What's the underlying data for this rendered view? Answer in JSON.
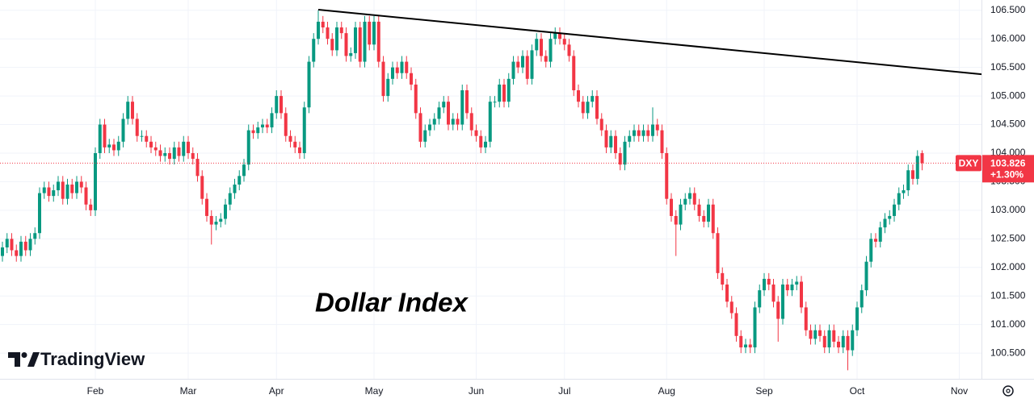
{
  "chart_data": {
    "type": "candlestick",
    "title": "Dollar Index",
    "watermark": "TradingView",
    "categories": [
      null,
      null,
      null,
      null,
      null,
      null,
      null,
      null,
      null,
      null,
      null,
      null,
      null,
      null,
      null,
      null,
      null,
      null,
      null,
      null,
      "Feb",
      null,
      null,
      null,
      null,
      null,
      null,
      null,
      null,
      null,
      null,
      null,
      null,
      null,
      null,
      null,
      null,
      null,
      null,
      null,
      "Mar",
      null,
      null,
      null,
      null,
      null,
      null,
      null,
      null,
      null,
      null,
      null,
      null,
      null,
      null,
      null,
      null,
      null,
      null,
      "Apr",
      null,
      null,
      null,
      null,
      null,
      null,
      null,
      null,
      null,
      null,
      null,
      null,
      null,
      null,
      null,
      null,
      null,
      null,
      null,
      null,
      "May",
      null,
      null,
      null,
      null,
      null,
      null,
      null,
      null,
      null,
      null,
      null,
      null,
      null,
      null,
      null,
      null,
      null,
      null,
      null,
      null,
      null,
      "Jun",
      null,
      null,
      null,
      null,
      null,
      null,
      null,
      null,
      null,
      null,
      null,
      null,
      null,
      null,
      null,
      null,
      null,
      null,
      "Jul",
      null,
      null,
      null,
      null,
      null,
      null,
      null,
      null,
      null,
      null,
      null,
      null,
      null,
      null,
      null,
      null,
      null,
      null,
      null,
      null,
      null,
      "Aug",
      null,
      null,
      null,
      null,
      null,
      null,
      null,
      null,
      null,
      null,
      null,
      null,
      null,
      null,
      null,
      null,
      null,
      null,
      null,
      null,
      "Sep",
      null,
      null,
      null,
      null,
      null,
      null,
      null,
      null,
      null,
      null,
      null,
      null,
      null,
      null,
      null,
      null,
      null,
      null,
      null,
      "Oct",
      null,
      null,
      null,
      null,
      null,
      null,
      null,
      null,
      null,
      null,
      null,
      null,
      null,
      null,
      null,
      null,
      null,
      null,
      null,
      null,
      null,
      "Nov"
    ],
    "series": {
      "open": [
        102.2,
        102.35,
        102.5,
        102.3,
        102.2,
        102.45,
        102.3,
        102.5,
        102.6,
        103.3,
        103.4,
        103.25,
        103.35,
        103.5,
        103.2,
        103.45,
        103.3,
        103.5,
        103.4,
        103.1,
        103.0,
        104.0,
        104.5,
        104.1,
        104.15,
        104.05,
        104.2,
        104.6,
        104.9,
        104.6,
        104.3,
        104.3,
        104.2,
        104.1,
        104.05,
        103.95,
        104.0,
        103.9,
        104.1,
        103.95,
        104.2,
        104.0,
        103.9,
        103.6,
        103.2,
        102.9,
        102.75,
        102.8,
        102.85,
        103.1,
        103.3,
        103.45,
        103.6,
        103.8,
        104.4,
        104.35,
        104.45,
        104.5,
        104.45,
        104.7,
        105.0,
        104.7,
        104.3,
        104.2,
        104.1,
        104.0,
        104.8,
        105.6,
        106.0,
        106.3,
        106.2,
        106.0,
        105.8,
        106.2,
        106.1,
        105.7,
        105.75,
        106.2,
        105.6,
        106.3,
        105.9,
        106.3,
        105.6,
        105.0,
        105.3,
        105.5,
        105.4,
        105.6,
        105.4,
        105.2,
        104.7,
        104.2,
        104.4,
        104.5,
        104.6,
        104.8,
        104.9,
        104.5,
        104.6,
        104.5,
        105.1,
        104.7,
        104.4,
        104.3,
        104.1,
        104.2,
        104.9,
        104.9,
        105.2,
        104.9,
        105.3,
        105.6,
        105.5,
        105.7,
        105.3,
        105.8,
        106.0,
        105.7,
        105.6,
        106.0,
        106.1,
        106.0,
        105.9,
        105.7,
        105.1,
        104.9,
        104.7,
        104.9,
        105.0,
        104.6,
        104.4,
        104.1,
        104.3,
        104.0,
        103.8,
        104.2,
        104.3,
        104.4,
        104.3,
        104.4,
        104.3,
        104.5,
        104.4,
        104.0,
        103.2,
        102.9,
        102.75,
        103.1,
        103.2,
        103.3,
        103.1,
        102.9,
        102.8,
        103.1,
        102.6,
        101.9,
        101.7,
        101.4,
        101.2,
        100.8,
        100.6,
        100.65,
        100.6,
        101.3,
        101.6,
        101.8,
        101.7,
        101.4,
        101.1,
        101.7,
        101.6,
        101.7,
        101.75,
        101.3,
        100.9,
        100.75,
        100.9,
        100.8,
        100.6,
        100.9,
        100.7,
        100.6,
        100.8,
        100.55,
        100.9,
        101.3,
        101.6,
        102.1,
        102.5,
        102.45,
        102.7,
        102.85,
        102.9,
        103.1,
        103.3,
        103.35,
        103.7,
        103.55,
        104.0,
        null,
        null,
        null,
        null,
        null,
        null,
        null,
        null
      ],
      "high": [
        102.45,
        102.6,
        102.6,
        102.4,
        102.55,
        102.55,
        102.6,
        102.7,
        103.4,
        103.5,
        103.5,
        103.45,
        103.6,
        103.6,
        103.55,
        103.55,
        103.6,
        103.6,
        103.5,
        103.2,
        104.1,
        104.6,
        104.6,
        104.25,
        104.25,
        104.3,
        104.7,
        105.0,
        105.0,
        104.7,
        104.4,
        104.4,
        104.3,
        104.2,
        104.15,
        104.1,
        104.1,
        104.2,
        104.2,
        104.3,
        104.3,
        104.1,
        104.0,
        103.7,
        103.3,
        103.0,
        102.9,
        102.95,
        103.2,
        103.4,
        103.55,
        103.7,
        103.9,
        104.5,
        104.5,
        104.55,
        104.6,
        104.6,
        104.8,
        105.1,
        105.1,
        104.8,
        104.4,
        104.3,
        104.2,
        104.9,
        105.7,
        106.1,
        106.5,
        106.4,
        106.3,
        106.1,
        106.3,
        106.3,
        106.2,
        105.85,
        106.3,
        106.3,
        106.4,
        106.4,
        106.4,
        106.4,
        105.7,
        105.4,
        105.6,
        105.6,
        105.7,
        105.7,
        105.5,
        105.3,
        104.8,
        104.5,
        104.6,
        104.7,
        104.9,
        105.0,
        105.0,
        104.7,
        104.7,
        105.2,
        105.2,
        104.8,
        104.5,
        104.4,
        104.3,
        105.0,
        105.0,
        105.3,
        105.3,
        105.4,
        105.7,
        105.7,
        105.8,
        105.8,
        105.9,
        106.1,
        106.1,
        105.8,
        106.1,
        106.2,
        106.2,
        106.1,
        106.0,
        105.8,
        105.2,
        105.0,
        105.0,
        105.1,
        105.1,
        104.7,
        104.5,
        104.4,
        104.4,
        104.1,
        104.3,
        104.4,
        104.5,
        104.5,
        104.5,
        104.5,
        104.8,
        104.6,
        104.5,
        104.1,
        103.3,
        103.0,
        103.2,
        103.3,
        103.4,
        103.4,
        103.2,
        103.0,
        103.2,
        103.2,
        102.7,
        102.0,
        101.8,
        101.5,
        101.3,
        100.9,
        100.75,
        100.75,
        101.4,
        101.7,
        101.9,
        101.9,
        101.8,
        101.5,
        101.8,
        101.8,
        101.8,
        101.85,
        101.85,
        101.4,
        101.0,
        101.0,
        101.0,
        100.9,
        101.0,
        101.0,
        100.8,
        100.9,
        100.9,
        101.0,
        101.4,
        101.7,
        102.2,
        102.6,
        102.6,
        102.8,
        102.95,
        103.0,
        103.2,
        103.4,
        103.45,
        103.8,
        103.8,
        104.05,
        104.05,
        null,
        null,
        null,
        null,
        null,
        null,
        null,
        null
      ],
      "low": [
        102.1,
        102.25,
        102.2,
        102.1,
        102.1,
        102.2,
        102.2,
        102.4,
        102.5,
        103.2,
        103.15,
        103.15,
        103.25,
        103.1,
        103.1,
        103.2,
        103.2,
        103.3,
        103.0,
        102.9,
        102.9,
        103.9,
        104.0,
        104.0,
        103.95,
        103.95,
        104.1,
        104.5,
        104.5,
        104.2,
        104.2,
        104.1,
        104.0,
        103.95,
        103.85,
        103.85,
        103.8,
        103.8,
        103.85,
        103.85,
        103.9,
        103.8,
        103.5,
        103.1,
        102.8,
        102.4,
        102.65,
        102.7,
        102.75,
        103.0,
        103.2,
        103.35,
        103.5,
        103.7,
        104.25,
        104.25,
        104.35,
        104.35,
        104.35,
        104.6,
        104.6,
        104.2,
        104.1,
        104.0,
        103.9,
        103.9,
        104.7,
        105.5,
        105.9,
        106.1,
        105.9,
        105.7,
        105.7,
        106.0,
        105.6,
        105.6,
        105.65,
        105.5,
        105.5,
        105.8,
        105.8,
        105.5,
        104.9,
        104.9,
        105.2,
        105.3,
        105.3,
        105.3,
        105.1,
        104.6,
        104.1,
        104.1,
        104.3,
        104.4,
        104.5,
        104.7,
        104.4,
        104.4,
        104.4,
        104.4,
        104.6,
        104.3,
        104.2,
        104.0,
        104.0,
        104.1,
        104.8,
        104.8,
        104.8,
        104.8,
        105.2,
        105.4,
        105.4,
        105.2,
        105.2,
        105.7,
        105.6,
        105.5,
        105.5,
        105.9,
        105.9,
        105.8,
        105.6,
        105.0,
        104.8,
        104.6,
        104.6,
        104.8,
        104.5,
        104.3,
        104.0,
        104.0,
        103.9,
        103.7,
        103.7,
        104.1,
        104.2,
        104.2,
        104.2,
        104.2,
        104.2,
        104.3,
        103.9,
        103.1,
        102.8,
        102.2,
        102.65,
        103.0,
        103.1,
        103.0,
        102.8,
        102.7,
        102.7,
        102.5,
        101.8,
        101.6,
        101.3,
        101.1,
        100.7,
        100.5,
        100.5,
        100.5,
        100.5,
        101.2,
        101.5,
        101.6,
        101.3,
        100.7,
        101.0,
        101.5,
        101.5,
        101.6,
        101.2,
        100.8,
        100.65,
        100.65,
        100.7,
        100.5,
        100.5,
        100.6,
        100.5,
        100.5,
        100.2,
        100.45,
        100.8,
        101.2,
        101.5,
        102.0,
        102.35,
        102.35,
        102.6,
        102.75,
        102.8,
        103.0,
        103.2,
        103.25,
        103.45,
        103.45,
        103.7,
        null,
        null,
        null,
        null,
        null,
        null,
        null,
        null
      ],
      "close": [
        102.35,
        102.5,
        102.3,
        102.2,
        102.45,
        102.3,
        102.5,
        102.6,
        103.3,
        103.4,
        103.25,
        103.35,
        103.5,
        103.2,
        103.45,
        103.3,
        103.5,
        103.4,
        103.1,
        103.0,
        104.0,
        104.5,
        104.1,
        104.15,
        104.05,
        104.2,
        104.6,
        104.9,
        104.6,
        104.3,
        104.3,
        104.2,
        104.1,
        104.05,
        103.95,
        104.0,
        103.9,
        104.1,
        103.95,
        104.2,
        104.0,
        103.9,
        103.6,
        103.2,
        102.9,
        102.75,
        102.8,
        102.85,
        103.1,
        103.3,
        103.45,
        103.6,
        103.8,
        104.4,
        104.35,
        104.45,
        104.5,
        104.45,
        104.7,
        105.0,
        104.7,
        104.3,
        104.2,
        104.1,
        104.0,
        104.8,
        105.6,
        106.0,
        106.3,
        106.2,
        106.0,
        105.8,
        106.2,
        106.1,
        105.7,
        105.75,
        106.2,
        105.6,
        106.3,
        105.9,
        106.3,
        105.6,
        105.0,
        105.3,
        105.5,
        105.4,
        105.6,
        105.4,
        105.2,
        104.7,
        104.2,
        104.4,
        104.5,
        104.6,
        104.8,
        104.9,
        104.5,
        104.6,
        104.5,
        105.1,
        104.7,
        104.4,
        104.3,
        104.1,
        104.2,
        104.9,
        104.9,
        105.2,
        104.9,
        105.3,
        105.6,
        105.5,
        105.7,
        105.3,
        105.8,
        106.0,
        105.7,
        105.6,
        106.0,
        106.1,
        106.0,
        105.9,
        105.7,
        105.1,
        104.9,
        104.7,
        104.9,
        105.0,
        104.6,
        104.4,
        104.1,
        104.3,
        104.0,
        103.8,
        104.2,
        104.3,
        104.4,
        104.3,
        104.4,
        104.3,
        104.5,
        104.4,
        104.0,
        103.2,
        102.9,
        102.75,
        103.1,
        103.2,
        103.3,
        103.1,
        102.9,
        102.8,
        103.1,
        102.6,
        101.9,
        101.7,
        101.4,
        101.2,
        100.8,
        100.6,
        100.65,
        100.6,
        101.3,
        101.6,
        101.8,
        101.7,
        101.4,
        101.1,
        101.7,
        101.6,
        101.7,
        101.75,
        101.3,
        100.9,
        100.75,
        100.9,
        100.8,
        100.6,
        100.9,
        100.7,
        100.6,
        100.8,
        100.55,
        100.9,
        101.3,
        101.6,
        102.1,
        102.5,
        102.45,
        102.7,
        102.85,
        102.9,
        103.1,
        103.3,
        103.35,
        103.7,
        103.55,
        103.95,
        103.826,
        null,
        null,
        null,
        null,
        null,
        null,
        null,
        null
      ]
    },
    "colors": {
      "up": "#089981",
      "down": "#f23645"
    },
    "ylim": [
      100.05,
      106.68
    ],
    "yticks": [
      {
        "value": 100.5,
        "label": "100.500"
      },
      {
        "value": 101,
        "label": "101.000"
      },
      {
        "value": 101.5,
        "label": "101.500"
      },
      {
        "value": 102,
        "label": "102.000"
      },
      {
        "value": 102.5,
        "label": "102.500"
      },
      {
        "value": 103,
        "label": "103.000"
      },
      {
        "value": 103.5,
        "label": "103.500"
      },
      {
        "value": 104,
        "label": "104.000"
      },
      {
        "value": 104.5,
        "label": "104.500"
      },
      {
        "value": 105,
        "label": "105.000"
      },
      {
        "value": 105.5,
        "label": "105.500"
      },
      {
        "value": 106,
        "label": "106.000"
      },
      {
        "value": 106.5,
        "label": "106.500"
      }
    ],
    "grid": true,
    "last": {
      "symbol": "DXY",
      "price": 103.826,
      "change": "+1.30%"
    },
    "trendline": {
      "x": [
        68,
        210.8
      ],
      "y": [
        106.51,
        105.38
      ]
    }
  }
}
